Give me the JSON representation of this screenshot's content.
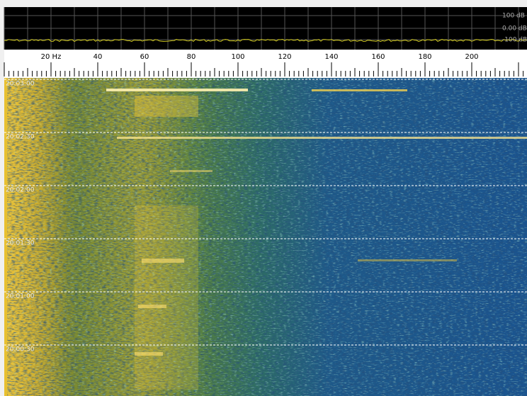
{
  "spectrum": {
    "db_labels": [
      "100 dB",
      "0.00 dB",
      "-100 dB"
    ]
  },
  "frequency_axis": {
    "labels": [
      "20 Hz",
      "40",
      "60",
      "80",
      "100",
      "120",
      "140",
      "160",
      "180",
      "200"
    ]
  },
  "waterfall": {
    "time_labels": [
      "20:03:00",
      "20:02:30",
      "20:02:00",
      "20:01:30",
      "20:01:00",
      "20:00:30"
    ]
  }
}
